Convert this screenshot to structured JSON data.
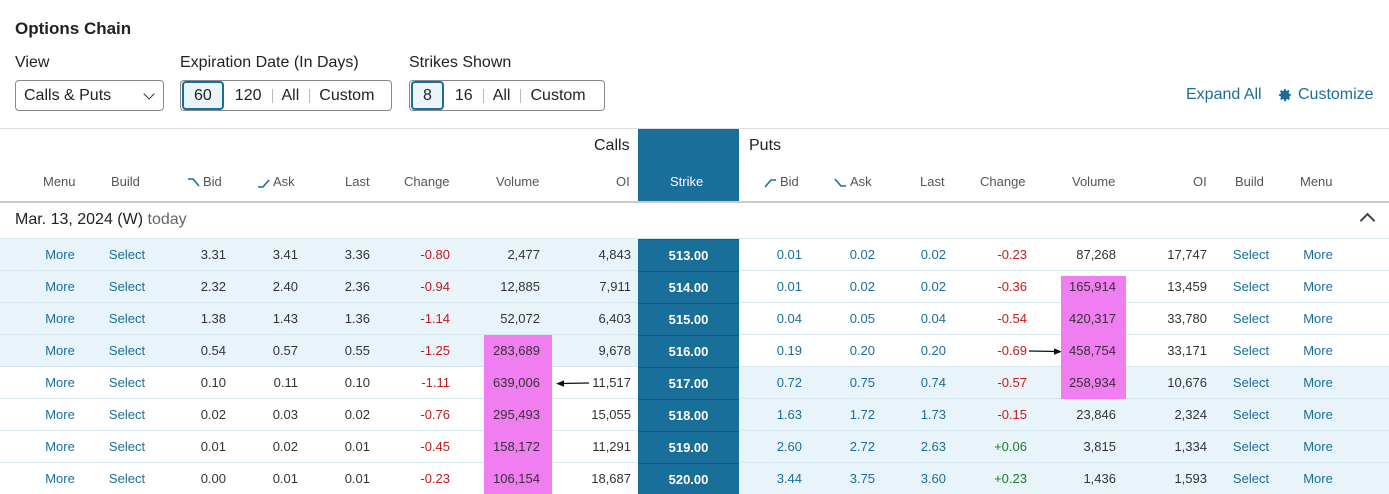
{
  "title": "Options Chain",
  "controls": {
    "view_label": "View",
    "view_value": "Calls & Puts",
    "exp_label": "Expiration Date (In Days)",
    "exp_options": [
      "60",
      "120",
      "All",
      "Custom"
    ],
    "strikes_label": "Strikes Shown",
    "strikes_options": [
      "8",
      "16",
      "All",
      "Custom"
    ],
    "expand_all": "Expand All",
    "customize": "Customize"
  },
  "headers": {
    "calls": "Calls",
    "puts": "Puts",
    "call_cols": [
      "Menu",
      "Build",
      "Bid",
      "Ask",
      "Last",
      "Change",
      "Volume",
      "OI"
    ],
    "strike": "Strike",
    "put_cols": [
      "Bid",
      "Ask",
      "Last",
      "Change",
      "Volume",
      "OI",
      "Build",
      "Menu"
    ]
  },
  "expiry": {
    "date": "Mar. 13, 2024 (W)",
    "today": "today"
  },
  "rows": [
    {
      "c_menu": "More",
      "c_build": "Select",
      "c_bid": "3.31",
      "c_ask": "3.41",
      "c_last": "3.36",
      "c_change": "-0.80",
      "c_volume": "2,477",
      "c_oi": "4,843",
      "strike": "513.00",
      "p_bid": "0.01",
      "p_ask": "0.02",
      "p_last": "0.02",
      "p_change": "-0.23",
      "p_volume": "87,268",
      "p_oi": "17,747",
      "p_build": "Select",
      "p_menu": "More"
    },
    {
      "c_menu": "More",
      "c_build": "Select",
      "c_bid": "2.32",
      "c_ask": "2.40",
      "c_last": "2.36",
      "c_change": "-0.94",
      "c_volume": "12,885",
      "c_oi": "7,911",
      "strike": "514.00",
      "p_bid": "0.01",
      "p_ask": "0.02",
      "p_last": "0.02",
      "p_change": "-0.36",
      "p_volume": "165,914",
      "p_oi": "13,459",
      "p_build": "Select",
      "p_menu": "More"
    },
    {
      "c_menu": "More",
      "c_build": "Select",
      "c_bid": "1.38",
      "c_ask": "1.43",
      "c_last": "1.36",
      "c_change": "-1.14",
      "c_volume": "52,072",
      "c_oi": "6,403",
      "strike": "515.00",
      "p_bid": "0.04",
      "p_ask": "0.05",
      "p_last": "0.04",
      "p_change": "-0.54",
      "p_volume": "420,317",
      "p_oi": "33,780",
      "p_build": "Select",
      "p_menu": "More"
    },
    {
      "c_menu": "More",
      "c_build": "Select",
      "c_bid": "0.54",
      "c_ask": "0.57",
      "c_last": "0.55",
      "c_change": "-1.25",
      "c_volume": "283,689",
      "c_oi": "9,678",
      "strike": "516.00",
      "p_bid": "0.19",
      "p_ask": "0.20",
      "p_last": "0.20",
      "p_change": "-0.69",
      "p_volume": "458,754",
      "p_oi": "33,171",
      "p_build": "Select",
      "p_menu": "More"
    },
    {
      "c_menu": "More",
      "c_build": "Select",
      "c_bid": "0.10",
      "c_ask": "0.11",
      "c_last": "0.10",
      "c_change": "-1.11",
      "c_volume": "639,006",
      "c_oi": "11,517",
      "strike": "517.00",
      "p_bid": "0.72",
      "p_ask": "0.75",
      "p_last": "0.74",
      "p_change": "-0.57",
      "p_volume": "258,934",
      "p_oi": "10,676",
      "p_build": "Select",
      "p_menu": "More"
    },
    {
      "c_menu": "More",
      "c_build": "Select",
      "c_bid": "0.02",
      "c_ask": "0.03",
      "c_last": "0.02",
      "c_change": "-0.76",
      "c_volume": "295,493",
      "c_oi": "15,055",
      "strike": "518.00",
      "p_bid": "1.63",
      "p_ask": "1.72",
      "p_last": "1.73",
      "p_change": "-0.15",
      "p_volume": "23,846",
      "p_oi": "2,324",
      "p_build": "Select",
      "p_menu": "More"
    },
    {
      "c_menu": "More",
      "c_build": "Select",
      "c_bid": "0.01",
      "c_ask": "0.02",
      "c_last": "0.01",
      "c_change": "-0.45",
      "c_volume": "158,172",
      "c_oi": "11,291",
      "strike": "519.00",
      "p_bid": "2.60",
      "p_ask": "2.72",
      "p_last": "2.63",
      "p_change": "+0.06",
      "p_volume": "3,815",
      "p_oi": "1,334",
      "p_build": "Select",
      "p_menu": "More"
    },
    {
      "c_menu": "More",
      "c_build": "Select",
      "c_bid": "0.00",
      "c_ask": "0.01",
      "c_last": "0.01",
      "c_change": "-0.23",
      "c_volume": "106,154",
      "c_oi": "18,687",
      "strike": "520.00",
      "p_bid": "3.44",
      "p_ask": "3.75",
      "p_last": "3.60",
      "p_change": "+0.23",
      "p_volume": "1,436",
      "p_oi": "1,593",
      "p_build": "Select",
      "p_menu": "More"
    }
  ],
  "colors": {
    "accent": "#1a6e9a",
    "itm_bg": "#e8f4fa",
    "negative": "#c41a1a",
    "positive": "#1b7a2a",
    "highlight": "#f07ef0"
  }
}
